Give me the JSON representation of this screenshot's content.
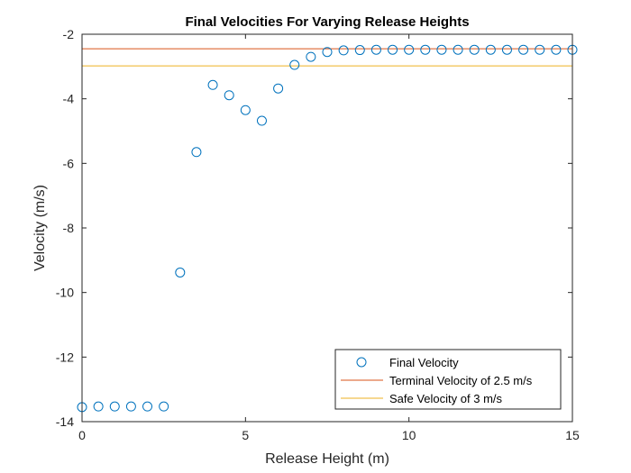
{
  "chart_data": {
    "type": "scatter",
    "title": "Final Velocities For Varying Release Heights",
    "xlabel": "Release Height (m)",
    "ylabel": "Velocity (m/s)",
    "xlim": [
      0,
      15
    ],
    "ylim": [
      -14,
      -2
    ],
    "xticks": [
      0,
      5,
      10,
      15
    ],
    "yticks": [
      -14,
      -12,
      -10,
      -8,
      -6,
      -4,
      -2
    ],
    "grid": false,
    "legend_position": "bottom-right",
    "series": [
      {
        "name": "Final Velocity",
        "kind": "scatter",
        "marker": "open-circle",
        "color": "#0072BD",
        "x": [
          0,
          0.5,
          1,
          1.5,
          2,
          2.5,
          3,
          3.5,
          4,
          4.5,
          5,
          5.5,
          6,
          6.5,
          7,
          7.5,
          8,
          8.5,
          9,
          9.5,
          10,
          10.5,
          11,
          11.5,
          12,
          12.5,
          13,
          13.5,
          14,
          14.5,
          15
        ],
        "y": [
          -13.55,
          -13.53,
          -13.53,
          -13.53,
          -13.53,
          -13.53,
          -9.38,
          -5.65,
          -3.57,
          -3.89,
          -4.35,
          -4.68,
          -3.68,
          -2.95,
          -2.7,
          -2.55,
          -2.5,
          -2.49,
          -2.48,
          -2.48,
          -2.48,
          -2.48,
          -2.48,
          -2.48,
          -2.48,
          -2.48,
          -2.48,
          -2.48,
          -2.48,
          -2.48,
          -2.48
        ]
      },
      {
        "name": "Terminal Velocity of 2.5 m/s",
        "kind": "line",
        "color": "#D95319",
        "x": [
          0,
          15
        ],
        "y": [
          -2.45,
          -2.45
        ]
      },
      {
        "name": "Safe Velocity of 3 m/s",
        "kind": "line",
        "color": "#EDB120",
        "x": [
          0,
          15
        ],
        "y": [
          -2.98,
          -2.98
        ]
      }
    ]
  }
}
